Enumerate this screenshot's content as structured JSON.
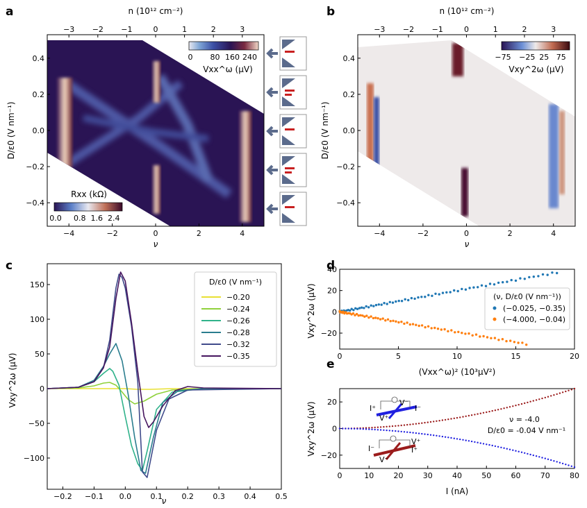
{
  "panels": {
    "a": "a",
    "b": "b",
    "c": "c",
    "d": "d",
    "e": "e"
  },
  "colors": {
    "purple_bg": "#2a1454",
    "blue": "#1f77b4",
    "orange": "#ff7f0e",
    "darkred": "#9b1c1c",
    "brightblue": "#2020e0",
    "arrow": "#5b6b8c"
  },
  "chart_data": [
    {
      "id": "a",
      "type": "heatmap",
      "title": "",
      "xlabel": "ν",
      "ylabel": "D/ε0 (V nm⁻¹)",
      "top_label": "n (10¹² cm⁻²)",
      "xlim": [
        -5,
        5
      ],
      "ylim": [
        -0.53,
        0.53
      ],
      "xticks": [
        -4,
        -2,
        0,
        2,
        4
      ],
      "yticks": [
        -0.4,
        -0.2,
        0.0,
        0.2,
        0.4
      ],
      "top_ticks": [
        -3,
        -2,
        -1,
        0,
        1,
        2,
        3
      ],
      "colorbars": [
        {
          "label": "Vxx^ω (μV)",
          "ticks": [
            "0",
            "80",
            "160",
            "240"
          ]
        },
        {
          "label": "Rxx (kΩ)",
          "ticks": [
            "0.0",
            "0.8",
            "1.6",
            "2.4"
          ]
        }
      ],
      "inset_count": 5
    },
    {
      "id": "b",
      "type": "heatmap",
      "xlabel": "ν",
      "ylabel": "D/ε0 (V nm⁻¹)",
      "top_label": "n (10¹² cm⁻²)",
      "xlim": [
        -5,
        5
      ],
      "ylim": [
        -0.53,
        0.53
      ],
      "xticks": [
        -4,
        -2,
        0,
        2,
        4
      ],
      "yticks": [
        -0.4,
        -0.2,
        0.0,
        0.2,
        0.4
      ],
      "top_ticks": [
        -3,
        -2,
        -1,
        0,
        1,
        2,
        3
      ],
      "colorbars": [
        {
          "label": "Vxy^2ω (μV)",
          "ticks": [
            "-75",
            "-25",
            "25",
            "75"
          ]
        }
      ]
    },
    {
      "id": "c",
      "type": "line",
      "xlabel": "ν",
      "ylabel": "Vxy^2ω (μV)",
      "xlim": [
        -0.25,
        0.5
      ],
      "ylim": [
        -145,
        180
      ],
      "xticks": [
        "-0.2",
        "-0.1",
        "0.0",
        "0.1",
        "0.2",
        "0.3",
        "0.4",
        "0.5"
      ],
      "yticks": [
        "-100",
        "-50",
        "0",
        "50",
        "100",
        "150"
      ],
      "legend_title": "D/ε0 (V nm⁻¹)",
      "series": [
        {
          "name": "-0.20",
          "color": "#e8e032",
          "x": [
            -0.25,
            -0.15,
            -0.08,
            -0.04,
            0.0,
            0.04,
            0.08,
            0.15,
            0.25,
            0.5
          ],
          "y": [
            0,
            0,
            0,
            0,
            0,
            -1,
            -1,
            0,
            0,
            0
          ]
        },
        {
          "name": "-0.24",
          "color": "#8fd13b",
          "x": [
            -0.25,
            -0.15,
            -0.1,
            -0.07,
            -0.05,
            -0.03,
            -0.01,
            0.01,
            0.03,
            0.06,
            0.1,
            0.15,
            0.25,
            0.5
          ],
          "y": [
            0,
            1,
            4,
            8,
            9,
            5,
            -5,
            -16,
            -22,
            -18,
            -8,
            -2,
            0,
            0
          ]
        },
        {
          "name": "-0.26",
          "color": "#2fb28a",
          "x": [
            -0.25,
            -0.15,
            -0.1,
            -0.07,
            -0.05,
            -0.04,
            -0.02,
            0.0,
            0.02,
            0.04,
            0.055,
            0.07,
            0.1,
            0.15,
            0.25,
            0.5
          ],
          "y": [
            0,
            2,
            10,
            22,
            29,
            25,
            5,
            -40,
            -82,
            -108,
            -118,
            -90,
            -30,
            -5,
            0,
            0
          ]
        },
        {
          "name": "-0.28",
          "color": "#2a7d8e",
          "x": [
            -0.25,
            -0.15,
            -0.1,
            -0.07,
            -0.05,
            -0.03,
            -0.01,
            0.01,
            0.03,
            0.05,
            0.065,
            0.09,
            0.12,
            0.17,
            0.25,
            0.5
          ],
          "y": [
            0,
            2,
            12,
            32,
            50,
            65,
            40,
            -10,
            -70,
            -118,
            -122,
            -70,
            -20,
            -3,
            0,
            0
          ]
        },
        {
          "name": "-0.32",
          "color": "#3f4a8a",
          "x": [
            -0.25,
            -0.15,
            -0.1,
            -0.07,
            -0.05,
            -0.03,
            -0.02,
            -0.01,
            0.0,
            0.02,
            0.04,
            0.055,
            0.07,
            0.1,
            0.14,
            0.2,
            0.5
          ],
          "y": [
            0,
            2,
            10,
            30,
            70,
            145,
            165,
            160,
            145,
            90,
            10,
            -120,
            -128,
            -60,
            -15,
            -2,
            0
          ]
        },
        {
          "name": "-0.35",
          "color": "#45145e",
          "x": [
            -0.25,
            -0.15,
            -0.1,
            -0.07,
            -0.05,
            -0.03,
            -0.015,
            0.0,
            0.02,
            0.04,
            0.06,
            0.075,
            0.09,
            0.12,
            0.16,
            0.2,
            0.25,
            0.5
          ],
          "y": [
            0,
            2,
            10,
            30,
            60,
            130,
            168,
            155,
            95,
            25,
            -40,
            -56,
            -48,
            -25,
            -3,
            3,
            1,
            0
          ]
        }
      ]
    },
    {
      "id": "d",
      "type": "scatter",
      "xlabel": "(Vxx^ω)² (10³μV²)",
      "ylabel": "Vxy^2ω (μV)",
      "xlim": [
        0,
        20
      ],
      "ylim": [
        -35,
        40
      ],
      "xticks": [
        "0",
        "5",
        "10",
        "15",
        "20"
      ],
      "yticks": [
        "-20",
        "0",
        "20",
        "40"
      ],
      "legend_title": "(ν, D/ε0 (V nm⁻¹))",
      "series": [
        {
          "name": "(-0.025, -0.35)",
          "color": "#1f77b4",
          "slope": 2.0,
          "xmax": 18.5
        },
        {
          "name": "(-4.000, -0.04)",
          "color": "#ff7f0e",
          "slope": -1.9,
          "xmax": 15.9
        }
      ]
    },
    {
      "id": "e",
      "type": "scatter",
      "xlabel": "I (nA)",
      "ylabel": "Vxy^2ω (μV)",
      "xlim": [
        0,
        80
      ],
      "ylim": [
        -30,
        30
      ],
      "xticks": [
        "0",
        "10",
        "20",
        "30",
        "40",
        "50",
        "60",
        "70",
        "80"
      ],
      "yticks": [
        "-20",
        "0",
        "20"
      ],
      "annotation_nu": "ν = -4.0",
      "annotation_d": "D/ε0 = -0.04 V nm⁻¹",
      "series": [
        {
          "name": "positive",
          "color": "#9b1c1c",
          "amp": 30
        },
        {
          "name": "negative",
          "color": "#2020e0",
          "amp": -29
        }
      ],
      "inset_top_labels": {
        "left": "I⁺",
        "right_top": "V⁻",
        "right": "I⁻",
        "bottom": "V⁺"
      },
      "inset_bottom_labels": {
        "left": "I⁻",
        "right_top": "V⁺",
        "right": "I⁺",
        "bottom": "V⁻"
      }
    }
  ]
}
